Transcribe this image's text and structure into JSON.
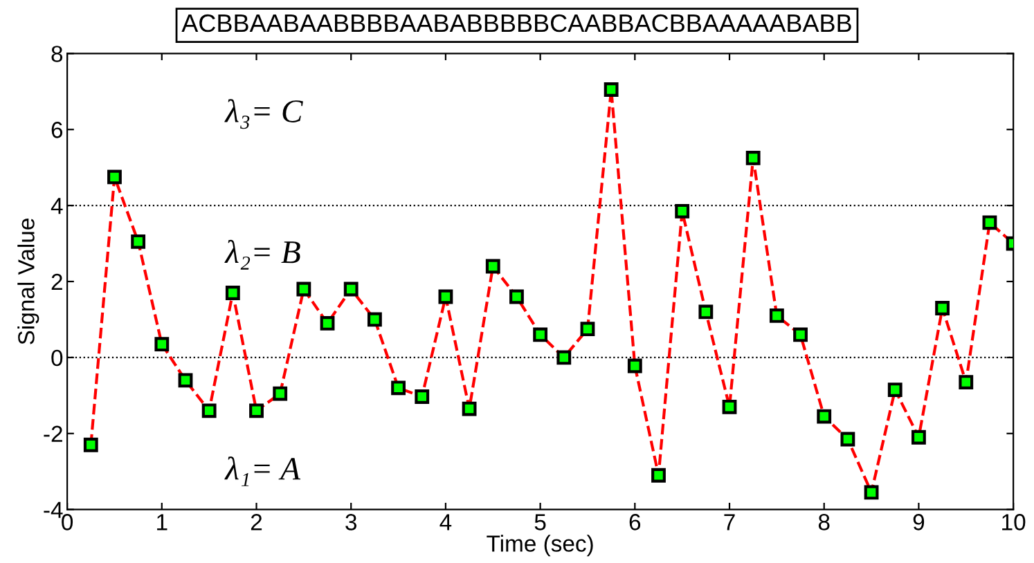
{
  "chart_data": {
    "type": "line",
    "title": "ACBBAABAABBBBAABABBBBBCAABBACBBAAAAABABB",
    "xlabel": "Time (sec)",
    "ylabel": "Signal Value",
    "x": [
      0.25,
      0.5,
      0.75,
      1.0,
      1.25,
      1.5,
      1.75,
      2.0,
      2.25,
      2.5,
      2.75,
      3.0,
      3.25,
      3.5,
      3.75,
      4.0,
      4.25,
      4.5,
      4.75,
      5.0,
      5.25,
      5.5,
      5.75,
      6.0,
      6.25,
      6.5,
      6.75,
      7.0,
      7.25,
      7.5,
      7.75,
      8.0,
      8.25,
      8.5,
      8.75,
      9.0,
      9.25,
      9.5,
      9.75,
      10.0
    ],
    "series": [
      {
        "color": "#ff0000",
        "values": [
          -2.3,
          4.75,
          3.05,
          0.35,
          -0.6,
          -1.4,
          1.7,
          -1.4,
          -0.95,
          1.8,
          0.9,
          1.8,
          1.0,
          -0.8,
          -1.03,
          1.6,
          -1.35,
          2.4,
          1.6,
          0.6,
          0.0,
          0.75,
          7.05,
          -0.22,
          -3.1,
          3.85,
          1.2,
          -1.3,
          5.25,
          1.1,
          0.6,
          -1.55,
          -2.15,
          -3.55,
          -0.85,
          -2.1,
          1.3,
          -0.65,
          3.55,
          3.0
        ]
      }
    ],
    "marker": "square",
    "line_style": "dashed",
    "grid": false,
    "legend": false,
    "xlim": [
      0,
      10
    ],
    "xticks": [
      0,
      1,
      2,
      3,
      4,
      5,
      6,
      7,
      8,
      9,
      10
    ],
    "ylim": [
      -4,
      8
    ],
    "yticks": [
      -4,
      -2,
      0,
      2,
      4,
      6,
      8
    ],
    "ref_lines": [
      {
        "axis": "y",
        "value": 0,
        "color": "#000000",
        "line_style": "dotted"
      },
      {
        "axis": "y",
        "value": 4,
        "color": "#000000",
        "line_style": "dotted"
      }
    ],
    "annotations": [
      "λ₃= C",
      "λ₂= B",
      "λ₁= A"
    ]
  }
}
